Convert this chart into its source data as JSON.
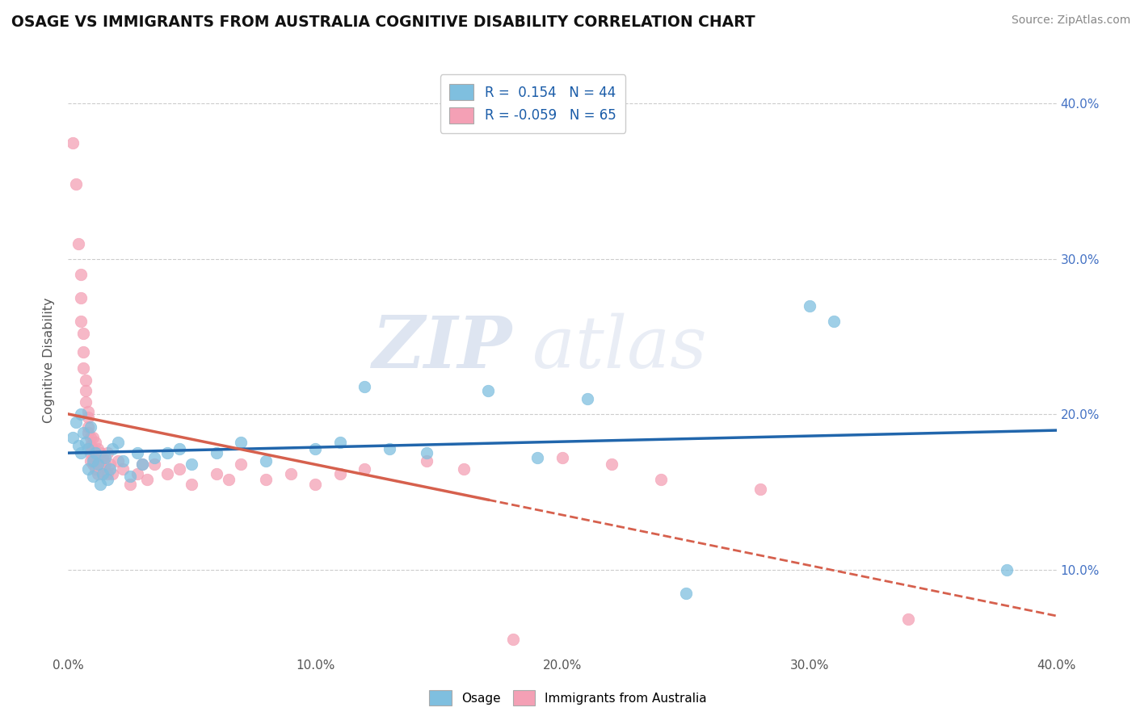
{
  "title": "OSAGE VS IMMIGRANTS FROM AUSTRALIA COGNITIVE DISABILITY CORRELATION CHART",
  "source": "Source: ZipAtlas.com",
  "ylabel_label": "Cognitive Disability",
  "xlim": [
    0.0,
    0.4
  ],
  "ylim": [
    0.045,
    0.425
  ],
  "x_ticks": [
    0.0,
    0.1,
    0.2,
    0.3,
    0.4
  ],
  "y_ticks": [
    0.1,
    0.2,
    0.3,
    0.4
  ],
  "y_tick_labels_right": [
    "10.0%",
    "20.0%",
    "30.0%",
    "40.0%"
  ],
  "x_tick_labels": [
    "0.0%",
    "10.0%",
    "20.0%",
    "30.0%",
    "40.0%"
  ],
  "blue_color": "#7fbfdf",
  "pink_color": "#f4a0b5",
  "line_blue": "#2166ac",
  "line_pink": "#d6604d",
  "watermark_zip": "ZIP",
  "watermark_atlas": "atlas",
  "osage_scatter": [
    [
      0.002,
      0.185
    ],
    [
      0.003,
      0.195
    ],
    [
      0.004,
      0.18
    ],
    [
      0.005,
      0.2
    ],
    [
      0.005,
      0.175
    ],
    [
      0.006,
      0.188
    ],
    [
      0.007,
      0.182
    ],
    [
      0.008,
      0.178
    ],
    [
      0.008,
      0.165
    ],
    [
      0.009,
      0.192
    ],
    [
      0.01,
      0.17
    ],
    [
      0.01,
      0.16
    ],
    [
      0.011,
      0.175
    ],
    [
      0.012,
      0.168
    ],
    [
      0.013,
      0.155
    ],
    [
      0.014,
      0.162
    ],
    [
      0.015,
      0.172
    ],
    [
      0.016,
      0.158
    ],
    [
      0.017,
      0.165
    ],
    [
      0.018,
      0.178
    ],
    [
      0.02,
      0.182
    ],
    [
      0.022,
      0.17
    ],
    [
      0.025,
      0.16
    ],
    [
      0.028,
      0.175
    ],
    [
      0.03,
      0.168
    ],
    [
      0.035,
      0.172
    ],
    [
      0.04,
      0.175
    ],
    [
      0.045,
      0.178
    ],
    [
      0.05,
      0.168
    ],
    [
      0.06,
      0.175
    ],
    [
      0.07,
      0.182
    ],
    [
      0.08,
      0.17
    ],
    [
      0.1,
      0.178
    ],
    [
      0.11,
      0.182
    ],
    [
      0.12,
      0.218
    ],
    [
      0.13,
      0.178
    ],
    [
      0.145,
      0.175
    ],
    [
      0.17,
      0.215
    ],
    [
      0.19,
      0.172
    ],
    [
      0.21,
      0.21
    ],
    [
      0.25,
      0.085
    ],
    [
      0.3,
      0.27
    ],
    [
      0.31,
      0.26
    ],
    [
      0.38,
      0.1
    ]
  ],
  "immigrants_scatter": [
    [
      0.002,
      0.375
    ],
    [
      0.003,
      0.348
    ],
    [
      0.004,
      0.31
    ],
    [
      0.005,
      0.29
    ],
    [
      0.005,
      0.275
    ],
    [
      0.005,
      0.26
    ],
    [
      0.006,
      0.252
    ],
    [
      0.006,
      0.24
    ],
    [
      0.006,
      0.23
    ],
    [
      0.007,
      0.222
    ],
    [
      0.007,
      0.215
    ],
    [
      0.007,
      0.208
    ],
    [
      0.008,
      0.202
    ],
    [
      0.008,
      0.198
    ],
    [
      0.008,
      0.192
    ],
    [
      0.008,
      0.188
    ],
    [
      0.009,
      0.185
    ],
    [
      0.009,
      0.18
    ],
    [
      0.009,
      0.175
    ],
    [
      0.009,
      0.17
    ],
    [
      0.01,
      0.185
    ],
    [
      0.01,
      0.178
    ],
    [
      0.01,
      0.172
    ],
    [
      0.01,
      0.168
    ],
    [
      0.011,
      0.182
    ],
    [
      0.011,
      0.175
    ],
    [
      0.011,
      0.165
    ],
    [
      0.012,
      0.178
    ],
    [
      0.012,
      0.17
    ],
    [
      0.012,
      0.162
    ],
    [
      0.013,
      0.175
    ],
    [
      0.013,
      0.168
    ],
    [
      0.014,
      0.172
    ],
    [
      0.014,
      0.162
    ],
    [
      0.015,
      0.168
    ],
    [
      0.016,
      0.175
    ],
    [
      0.016,
      0.162
    ],
    [
      0.017,
      0.168
    ],
    [
      0.018,
      0.162
    ],
    [
      0.02,
      0.17
    ],
    [
      0.022,
      0.165
    ],
    [
      0.025,
      0.155
    ],
    [
      0.028,
      0.162
    ],
    [
      0.03,
      0.168
    ],
    [
      0.032,
      0.158
    ],
    [
      0.035,
      0.168
    ],
    [
      0.04,
      0.162
    ],
    [
      0.045,
      0.165
    ],
    [
      0.05,
      0.155
    ],
    [
      0.06,
      0.162
    ],
    [
      0.065,
      0.158
    ],
    [
      0.07,
      0.168
    ],
    [
      0.08,
      0.158
    ],
    [
      0.09,
      0.162
    ],
    [
      0.1,
      0.155
    ],
    [
      0.11,
      0.162
    ],
    [
      0.12,
      0.165
    ],
    [
      0.145,
      0.17
    ],
    [
      0.16,
      0.165
    ],
    [
      0.2,
      0.172
    ],
    [
      0.22,
      0.168
    ],
    [
      0.24,
      0.158
    ],
    [
      0.28,
      0.152
    ],
    [
      0.34,
      0.068
    ],
    [
      0.18,
      0.055
    ]
  ],
  "background_color": "#ffffff",
  "grid_color": "#cccccc"
}
